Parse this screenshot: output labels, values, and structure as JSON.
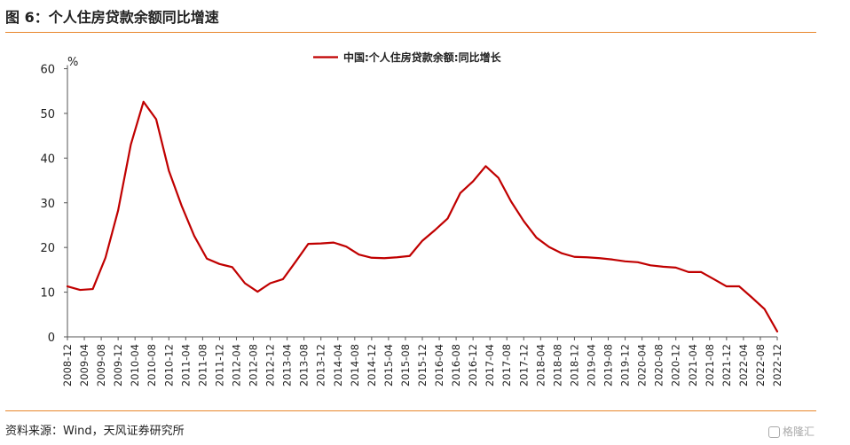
{
  "figure_title": "图 6：个人住房贷款余额同比增速",
  "source_text": "资料来源：Wind，天风证券研究所",
  "watermark_text": "格隆汇",
  "colors": {
    "line": "#c00000",
    "rule": "#e8862b"
  },
  "chart_data": {
    "type": "line",
    "title": "",
    "xlabel": "",
    "ylabel": "%",
    "ylim": [
      0,
      60
    ],
    "yticks": [
      0,
      10,
      20,
      30,
      40,
      50,
      60
    ],
    "grid": false,
    "legend_position": "top-center",
    "x": [
      "2008-12",
      "2009-03",
      "2009-06",
      "2009-09",
      "2009-12",
      "2010-03",
      "2010-06",
      "2010-09",
      "2010-12",
      "2011-03",
      "2011-06",
      "2011-09",
      "2011-12",
      "2012-03",
      "2012-06",
      "2012-09",
      "2012-12",
      "2013-03",
      "2013-06",
      "2013-09",
      "2013-12",
      "2014-03",
      "2014-06",
      "2014-09",
      "2014-12",
      "2015-03",
      "2015-06",
      "2015-09",
      "2015-12",
      "2016-03",
      "2016-06",
      "2016-09",
      "2016-12",
      "2017-03",
      "2017-06",
      "2017-09",
      "2017-12",
      "2018-03",
      "2018-06",
      "2018-09",
      "2018-12",
      "2019-03",
      "2019-06",
      "2019-09",
      "2019-12",
      "2020-03",
      "2020-06",
      "2020-09",
      "2020-12",
      "2021-03",
      "2021-06",
      "2021-09",
      "2021-12",
      "2022-03",
      "2022-06",
      "2022-09",
      "2022-12"
    ],
    "xtick_labels": [
      "2008-12",
      "2009-04",
      "2009-08",
      "2009-12",
      "2010-04",
      "2010-08",
      "2010-12",
      "2011-04",
      "2011-08",
      "2011-12",
      "2012-04",
      "2012-08",
      "2012-12",
      "2013-04",
      "2013-08",
      "2013-12",
      "2014-04",
      "2014-08",
      "2014-12",
      "2015-04",
      "2015-08",
      "2015-12",
      "2016-04",
      "2016-08",
      "2016-12",
      "2017-04",
      "2017-08",
      "2017-12",
      "2018-04",
      "2018-08",
      "2018-12",
      "2019-04",
      "2019-08",
      "2019-12",
      "2020-04",
      "2020-08",
      "2020-12",
      "2021-04",
      "2021-08",
      "2021-12",
      "2022-04",
      "2022-08",
      "2022-12"
    ],
    "series": [
      {
        "name": "中国:个人住房贷款余额:同比增长",
        "values": [
          11.3,
          10.5,
          10.7,
          17.7,
          28.3,
          43.0,
          52.6,
          48.7,
          37.2,
          29.4,
          22.6,
          17.5,
          16.3,
          15.6,
          12.0,
          10.1,
          12.0,
          12.9,
          16.8,
          20.8,
          20.9,
          21.1,
          20.2,
          18.4,
          17.7,
          17.6,
          17.8,
          18.1,
          21.5,
          23.9,
          26.5,
          32.2,
          34.8,
          38.2,
          35.6,
          30.3,
          25.9,
          22.2,
          20.1,
          18.7,
          17.9,
          17.8,
          17.6,
          17.3,
          16.9,
          16.7,
          16.0,
          15.7,
          15.5,
          14.5,
          14.5,
          12.9,
          11.3,
          11.3,
          8.8,
          6.2,
          1.2
        ]
      }
    ]
  }
}
